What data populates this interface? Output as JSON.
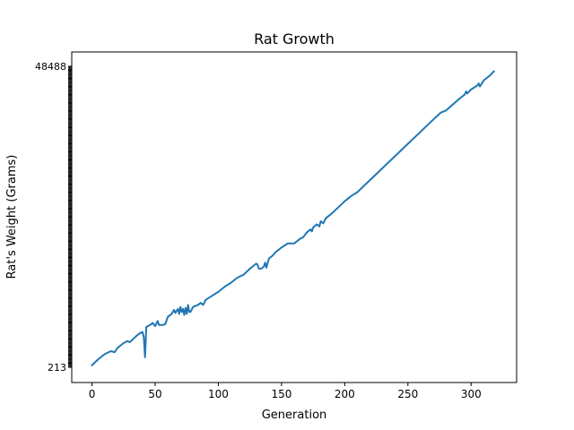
{
  "chart_data": {
    "type": "line",
    "title": "Rat Growth",
    "xlabel": "Generation",
    "ylabel": "Rat's Weight (Grams)",
    "xlim": [
      -16,
      336
    ],
    "x_ticks": [
      0,
      50,
      100,
      150,
      200,
      250,
      300
    ],
    "y_category_axis": true,
    "y_ticks_visible_labels": [
      "48488",
      "213"
    ],
    "y_tick_count": 300,
    "grid": false,
    "legend": "none",
    "line_color": "#1f77b4",
    "series": [
      {
        "points": [
          [
            0,
            2
          ],
          [
            5,
            8
          ],
          [
            10,
            13
          ],
          [
            15,
            16
          ],
          [
            18,
            15
          ],
          [
            20,
            19
          ],
          [
            25,
            24
          ],
          [
            28,
            26
          ],
          [
            30,
            25
          ],
          [
            35,
            31
          ],
          [
            38,
            34
          ],
          [
            40,
            35
          ],
          [
            41,
            30
          ],
          [
            42,
            10
          ],
          [
            43,
            40
          ],
          [
            46,
            42
          ],
          [
            48,
            44
          ],
          [
            50,
            41
          ],
          [
            52,
            46
          ],
          [
            53,
            42
          ],
          [
            56,
            42
          ],
          [
            58,
            43
          ],
          [
            60,
            50
          ],
          [
            63,
            53
          ],
          [
            65,
            57
          ],
          [
            66,
            54
          ],
          [
            68,
            58
          ],
          [
            69,
            53
          ],
          [
            70,
            60
          ],
          [
            71,
            55
          ],
          [
            72,
            58
          ],
          [
            73,
            52
          ],
          [
            74,
            59
          ],
          [
            75,
            53
          ],
          [
            76,
            62
          ],
          [
            77,
            55
          ],
          [
            78,
            55
          ],
          [
            80,
            60
          ],
          [
            84,
            62
          ],
          [
            86,
            64
          ],
          [
            88,
            62
          ],
          [
            90,
            67
          ],
          [
            95,
            71
          ],
          [
            100,
            75
          ],
          [
            105,
            80
          ],
          [
            110,
            84
          ],
          [
            115,
            89
          ],
          [
            120,
            92
          ],
          [
            125,
            98
          ],
          [
            128,
            101
          ],
          [
            130,
            103
          ],
          [
            131,
            102
          ],
          [
            132,
            98
          ],
          [
            134,
            98
          ],
          [
            136,
            100
          ],
          [
            137,
            104
          ],
          [
            138,
            99
          ],
          [
            140,
            108
          ],
          [
            143,
            111
          ],
          [
            145,
            114
          ],
          [
            150,
            119
          ],
          [
            155,
            123
          ],
          [
            160,
            123
          ],
          [
            165,
            128
          ],
          [
            167,
            129
          ],
          [
            170,
            134
          ],
          [
            173,
            137
          ],
          [
            174,
            135
          ],
          [
            175,
            139
          ],
          [
            178,
            142
          ],
          [
            180,
            140
          ],
          [
            181,
            145
          ],
          [
            182,
            144
          ],
          [
            183,
            143
          ],
          [
            185,
            148
          ],
          [
            190,
            153
          ],
          [
            195,
            159
          ],
          [
            200,
            165
          ],
          [
            205,
            170
          ],
          [
            210,
            174
          ],
          [
            215,
            180
          ],
          [
            220,
            186
          ],
          [
            230,
            198
          ],
          [
            240,
            210
          ],
          [
            250,
            222
          ],
          [
            260,
            234
          ],
          [
            270,
            246
          ],
          [
            276,
            253
          ],
          [
            280,
            255
          ],
          [
            290,
            266
          ],
          [
            295,
            271
          ],
          [
            296,
            274
          ],
          [
            297,
            272
          ],
          [
            300,
            276
          ],
          [
            305,
            280
          ],
          [
            306,
            282
          ],
          [
            307,
            279
          ],
          [
            310,
            285
          ],
          [
            315,
            290
          ],
          [
            318,
            294
          ]
        ]
      }
    ]
  }
}
